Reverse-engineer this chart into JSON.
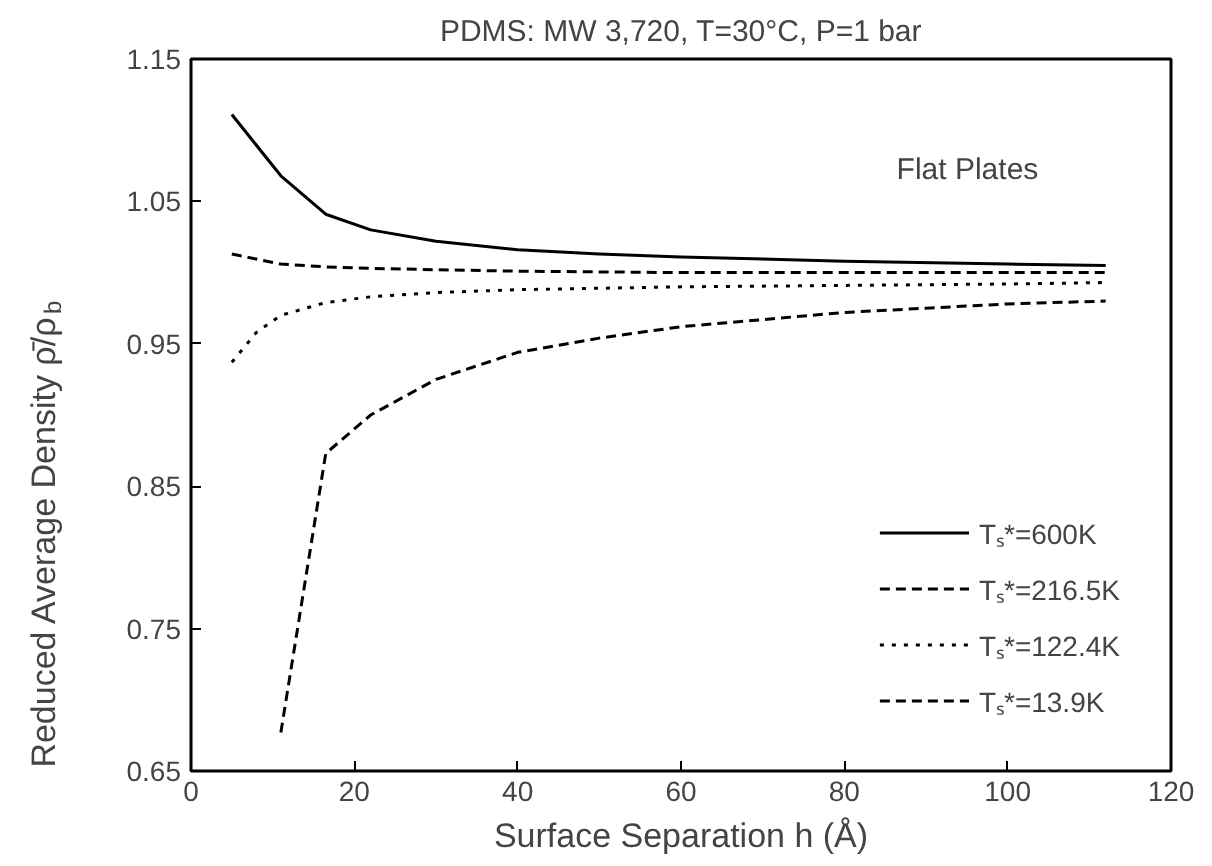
{
  "chart_data": {
    "type": "line",
    "title": "PDMS: MW 3,720, T=30°C, P=1 bar",
    "xlabel": "Surface Separation h (Å)",
    "ylabel": "Reduced Average Density ρ̄/ρ$_{b}$",
    "annotations": [
      "Flat Plates"
    ],
    "xlim": [
      0,
      120
    ],
    "ylim": [
      0.65,
      1.15
    ],
    "xticks": [
      0,
      20,
      40,
      60,
      80,
      100,
      120
    ],
    "yticks": [
      {
        "value": 0.65,
        "label": "0.65"
      },
      {
        "value": 0.75,
        "label": "0.75"
      },
      {
        "value": 0.85,
        "label": "0.85"
      },
      {
        "value": 0.95,
        "label": "0.95"
      },
      {
        "value": 1.05,
        "label": "1.05"
      },
      {
        "value": 1.15,
        "label": "1.15"
      }
    ],
    "grid": false,
    "legend": "bottom right",
    "marker": "none",
    "series": [
      {
        "name": "Tₛ*=600K",
        "color": "#000000",
        "line_style": "solid",
        "x": [
          5,
          11,
          16.5,
          22,
          30,
          40,
          50,
          60,
          80,
          100,
          112
        ],
        "values": [
          1.111,
          1.068,
          1.041,
          1.03,
          1.022,
          1.016,
          1.013,
          1.011,
          1.008,
          1.006,
          1.005
        ]
      },
      {
        "name": "Tₛ*=216.5K",
        "color": "#000000",
        "line_style": "dashed",
        "x": [
          5,
          11,
          16.5,
          22,
          30,
          40,
          60,
          80,
          100,
          112
        ],
        "values": [
          1.013,
          1.006,
          1.004,
          1.003,
          1.002,
          1.001,
          1.0,
          1.0,
          1.0,
          1.0
        ]
      },
      {
        "name": "Tₛ*=122.4K",
        "color": "#000000",
        "line_style": "dotted",
        "x": [
          5,
          8,
          11,
          16.5,
          22,
          30,
          40,
          60,
          80,
          100,
          112
        ],
        "values": [
          0.937,
          0.958,
          0.97,
          0.979,
          0.983,
          0.986,
          0.988,
          0.99,
          0.991,
          0.992,
          0.993
        ]
      },
      {
        "name": "Tₛ*=13.9K",
        "color": "#000000",
        "line_style": "dashed",
        "x": [
          11,
          16.5,
          22,
          30,
          40,
          50,
          60,
          70,
          80,
          90,
          100,
          112
        ],
        "values": [
          0.677,
          0.873,
          0.9,
          0.925,
          0.944,
          0.954,
          0.962,
          0.967,
          0.972,
          0.975,
          0.978,
          0.98
        ]
      }
    ]
  }
}
